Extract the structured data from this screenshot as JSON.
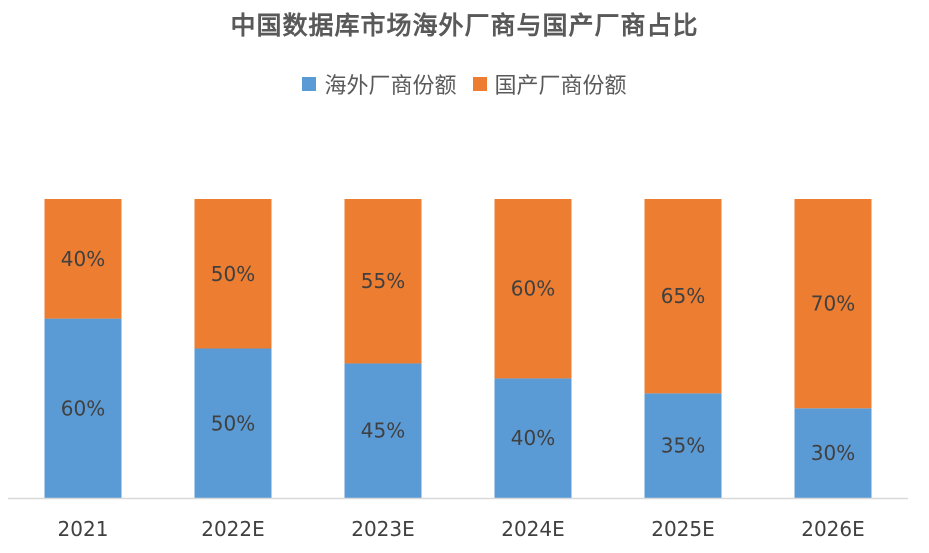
{
  "chart_data": {
    "type": "bar",
    "stacked": true,
    "title": "中国数据库市场海外厂商与国产厂商占比",
    "categories": [
      "2021",
      "2022E",
      "2023E",
      "2024E",
      "2025E",
      "2026E"
    ],
    "series": [
      {
        "name": "海外厂商份额",
        "color": "#5b9bd5",
        "values": [
          60,
          50,
          45,
          40,
          35,
          30
        ],
        "labels": [
          "60%",
          "50%",
          "45%",
          "40%",
          "35%",
          "30%"
        ]
      },
      {
        "name": "国产厂商份额",
        "color": "#ed7d31",
        "values": [
          40,
          50,
          55,
          60,
          65,
          70
        ],
        "labels": [
          "40%",
          "50%",
          "55%",
          "60%",
          "65%",
          "70%"
        ]
      }
    ],
    "ylim": [
      0,
      100
    ],
    "legend_position": "top",
    "grid": false
  },
  "colors": {
    "axis": "#d9d9d9"
  }
}
